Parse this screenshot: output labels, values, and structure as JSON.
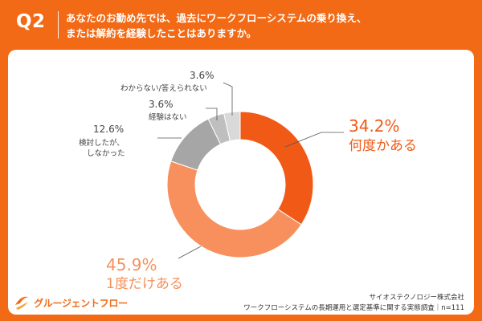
{
  "header": {
    "question_label": "Q2",
    "question_line1": "あなたのお勤め先では、過去にワークフローシステムの乗り換え、",
    "question_line2": "または解約を経験したことはありますか。"
  },
  "chart_data": {
    "type": "pie",
    "donut": true,
    "categories": [
      "何度かある",
      "1度だけある",
      "検討したが、しなかった",
      "経験はない",
      "わからない/答えられない"
    ],
    "values": [
      34.2,
      45.9,
      12.6,
      3.6,
      3.6
    ],
    "value_labels": [
      "34.2%",
      "45.9%",
      "12.6%",
      "3.6%",
      "3.6%"
    ],
    "colors": [
      "#f05a16",
      "#f7905c",
      "#a6a6a6",
      "#bfbfbf",
      "#d9d9d9"
    ]
  },
  "labels": {
    "slice1_value": "34.2%",
    "slice1_name": "何度かある",
    "slice2_value": "45.9%",
    "slice2_name": "1度だけある",
    "slice3_value": "12.6%",
    "slice3_name_line1": "検討したが、",
    "slice3_name_line2": "しなかった",
    "slice4_value": "3.6%",
    "slice4_name": "経験はない",
    "slice5_value": "3.6%",
    "slice5_name": "わからない/答えられない"
  },
  "footer": {
    "company": "サイオステクノロジー株式会社",
    "source": "ワークフローシステムの長期運用と選定基準に関する実態調査｜n=111",
    "logo_text": "グルージェントフロー"
  }
}
